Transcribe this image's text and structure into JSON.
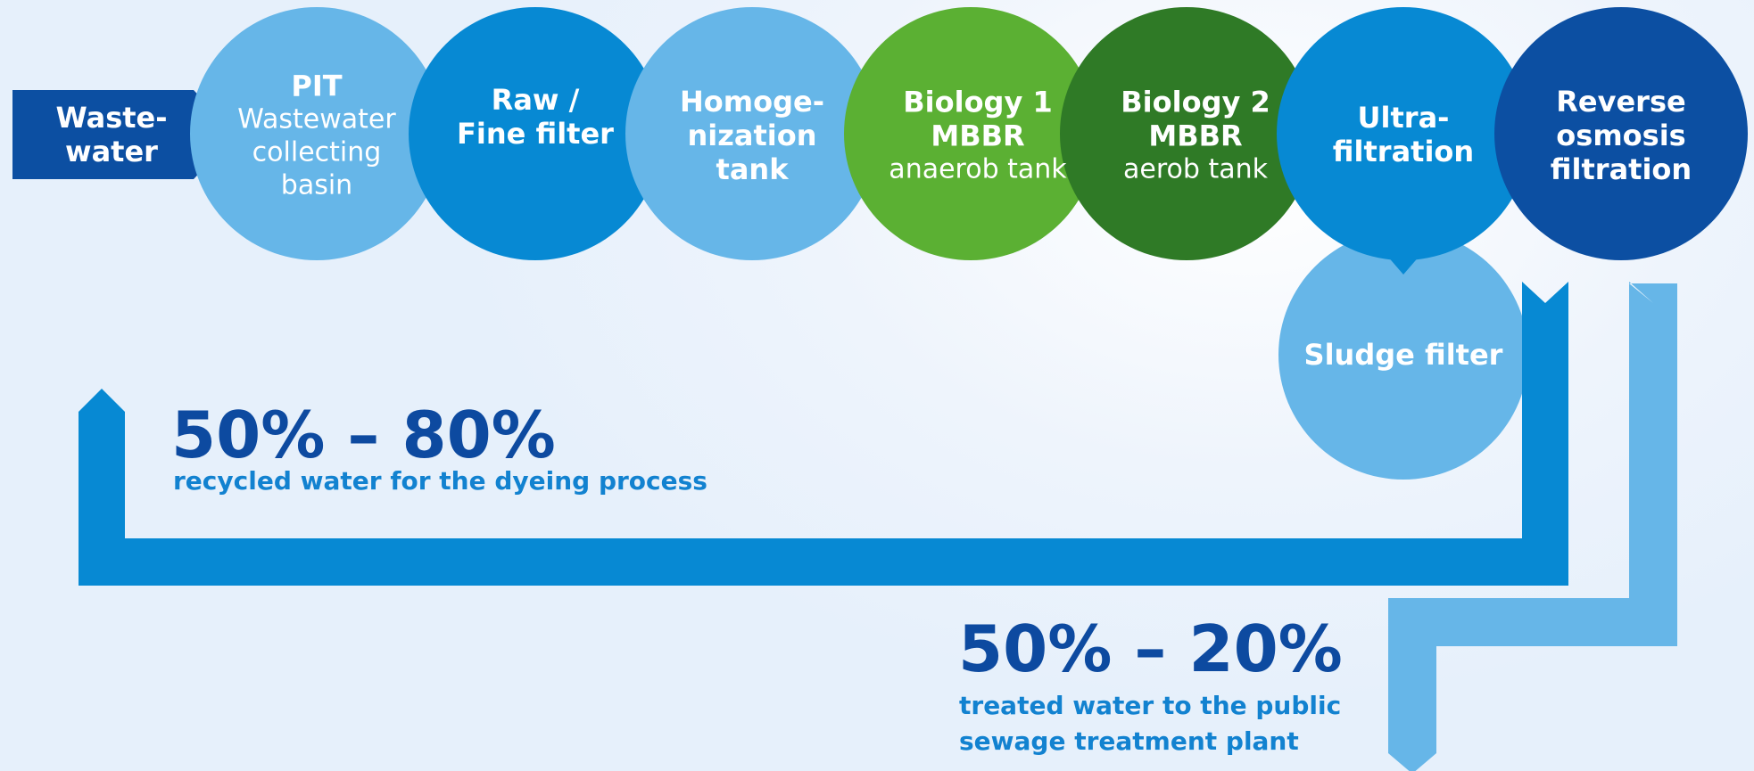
{
  "colors": {
    "dark_blue": "#0c4fa2",
    "mid_blue": "#0789d3",
    "light_blue": "#66b6e8",
    "green_light": "#5bb033",
    "green_dark": "#2f7a26",
    "accent_text": "#1282d0",
    "headline_text": "#0d4aa0"
  },
  "input": {
    "title": "Waste-\nwater"
  },
  "stages": [
    {
      "title": "PIT",
      "subtitle": "Wastewater\ncollecting\nbasin"
    },
    {
      "title": "Raw /\nFine filter",
      "subtitle": ""
    },
    {
      "title": "Homoge-\nnization\ntank",
      "subtitle": ""
    },
    {
      "title": "Biology 1\nMBBR",
      "subtitle": "anaerob tank"
    },
    {
      "title": "Biology 2\nMBBR",
      "subtitle": "aerob tank"
    },
    {
      "title": "Ultra-\nfiltration",
      "subtitle": ""
    },
    {
      "title": "Reverse\nosmosis\nfiltration",
      "subtitle": ""
    }
  ],
  "sludge": {
    "title": "Sludge filter"
  },
  "recycled": {
    "percent": "50% – 80%",
    "caption": "recycled water for the dyeing process"
  },
  "treated": {
    "percent": "50% – 20%",
    "caption": "treated water to the public\nsewage treatment plant"
  }
}
